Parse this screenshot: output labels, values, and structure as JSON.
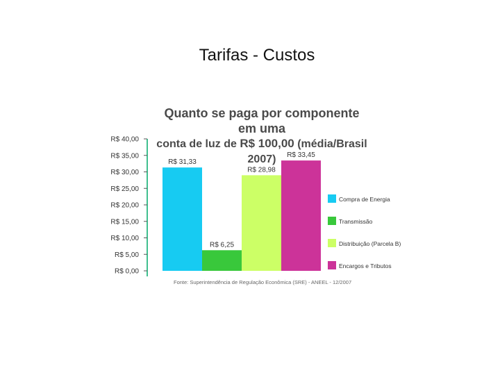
{
  "slide": {
    "title": "Tarifas - Custos"
  },
  "chart_data": {
    "type": "bar",
    "title_line1": "Quanto se paga por componente em uma",
    "title_line2_a": "conta de luz de ",
    "title_line2_b": "R$ 100,00",
    "title_line2_c": " (média/Brasil 2007)",
    "categories": [
      "Compra de Energia",
      "Transmissão",
      "Distribuição (Parcela B)",
      "Encargos e Tributos"
    ],
    "values": [
      31.33,
      6.25,
      28.98,
      33.45
    ],
    "value_labels": [
      "R$ 31,33",
      "R$ 6,25",
      "R$ 28,98",
      "R$ 33,45"
    ],
    "colors": [
      "#17cbf2",
      "#39c83b",
      "#ccff66",
      "#cc3399"
    ],
    "yticks": [
      "R$ 0,00",
      "R$ 5,00",
      "R$ 10,00",
      "R$ 15,00",
      "R$ 20,00",
      "R$ 25,00",
      "R$ 30,00",
      "R$ 35,00",
      "R$ 40,00"
    ],
    "ylim": [
      0,
      40
    ],
    "axis_color": "#3fbf8f",
    "legend_position": "right",
    "grid": false,
    "source": "Fonte: Superintendência de Regulação Econômica (SRE) - ANEEL - 12/2007"
  }
}
